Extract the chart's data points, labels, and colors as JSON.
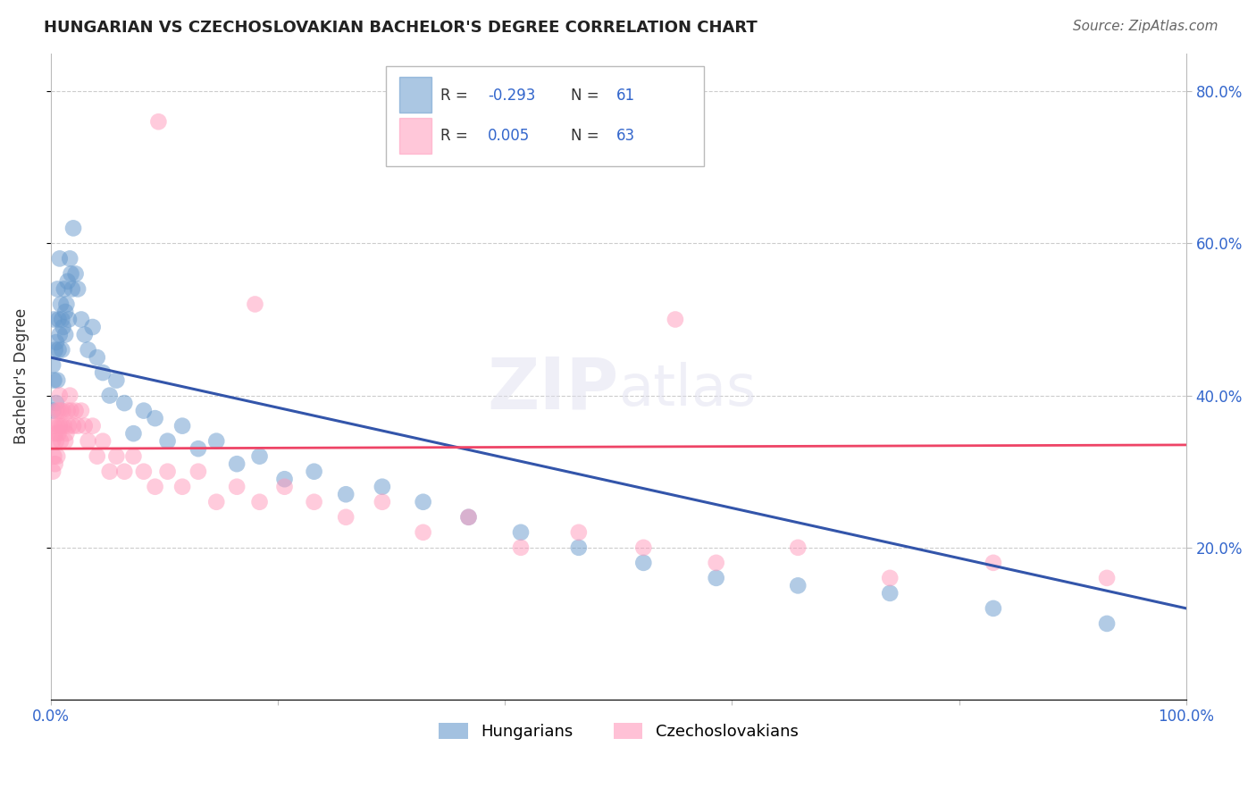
{
  "title": "HUNGARIAN VS CZECHOSLOVAKIAN BACHELOR'S DEGREE CORRELATION CHART",
  "source": "Source: ZipAtlas.com",
  "ylabel": "Bachelor's Degree",
  "xlim": [
    0.0,
    1.0
  ],
  "ylim": [
    0.0,
    0.85
  ],
  "grid_color": "#cccccc",
  "background_color": "#ffffff",
  "watermark_zip": "ZIP",
  "watermark_atlas": "atlas",
  "legend_r_hungarian": "-0.293",
  "legend_n_hungarian": "61",
  "legend_r_czech": "0.005",
  "legend_n_czech": "63",
  "hungarian_color": "#6699cc",
  "czech_color": "#ff99bb",
  "trendline_hungarian_color": "#3355aa",
  "trendline_czech_color": "#ee4466",
  "hungarian_x": [
    0.002,
    0.002,
    0.003,
    0.003,
    0.004,
    0.005,
    0.005,
    0.006,
    0.006,
    0.007,
    0.007,
    0.008,
    0.008,
    0.009,
    0.01,
    0.01,
    0.011,
    0.012,
    0.013,
    0.013,
    0.014,
    0.015,
    0.016,
    0.017,
    0.018,
    0.019,
    0.02,
    0.022,
    0.024,
    0.027,
    0.03,
    0.033,
    0.037,
    0.041,
    0.046,
    0.052,
    0.058,
    0.065,
    0.073,
    0.082,
    0.092,
    0.103,
    0.116,
    0.13,
    0.146,
    0.164,
    0.184,
    0.206,
    0.232,
    0.26,
    0.292,
    0.328,
    0.368,
    0.414,
    0.465,
    0.522,
    0.586,
    0.658,
    0.739,
    0.83,
    0.93
  ],
  "hungarian_y": [
    0.44,
    0.38,
    0.5,
    0.42,
    0.46,
    0.39,
    0.47,
    0.54,
    0.42,
    0.5,
    0.46,
    0.58,
    0.48,
    0.52,
    0.5,
    0.46,
    0.49,
    0.54,
    0.51,
    0.48,
    0.52,
    0.55,
    0.5,
    0.58,
    0.56,
    0.54,
    0.62,
    0.56,
    0.54,
    0.5,
    0.48,
    0.46,
    0.49,
    0.45,
    0.43,
    0.4,
    0.42,
    0.39,
    0.35,
    0.38,
    0.37,
    0.34,
    0.36,
    0.33,
    0.34,
    0.31,
    0.32,
    0.29,
    0.3,
    0.27,
    0.28,
    0.26,
    0.24,
    0.22,
    0.2,
    0.18,
    0.16,
    0.15,
    0.14,
    0.12,
    0.1
  ],
  "czech_x": [
    0.002,
    0.002,
    0.003,
    0.003,
    0.004,
    0.004,
    0.005,
    0.005,
    0.006,
    0.006,
    0.007,
    0.007,
    0.008,
    0.008,
    0.009,
    0.009,
    0.01,
    0.011,
    0.012,
    0.013,
    0.014,
    0.015,
    0.016,
    0.017,
    0.018,
    0.02,
    0.022,
    0.024,
    0.027,
    0.03,
    0.033,
    0.037,
    0.041,
    0.046,
    0.052,
    0.058,
    0.065,
    0.073,
    0.082,
    0.092,
    0.103,
    0.116,
    0.13,
    0.146,
    0.164,
    0.184,
    0.206,
    0.232,
    0.26,
    0.292,
    0.328,
    0.368,
    0.414,
    0.465,
    0.522,
    0.586,
    0.658,
    0.739,
    0.83,
    0.93,
    0.095,
    0.18,
    0.55
  ],
  "czech_y": [
    0.34,
    0.3,
    0.36,
    0.32,
    0.35,
    0.31,
    0.38,
    0.34,
    0.36,
    0.32,
    0.35,
    0.38,
    0.4,
    0.36,
    0.38,
    0.34,
    0.36,
    0.38,
    0.36,
    0.34,
    0.35,
    0.38,
    0.36,
    0.4,
    0.38,
    0.36,
    0.38,
    0.36,
    0.38,
    0.36,
    0.34,
    0.36,
    0.32,
    0.34,
    0.3,
    0.32,
    0.3,
    0.32,
    0.3,
    0.28,
    0.3,
    0.28,
    0.3,
    0.26,
    0.28,
    0.26,
    0.28,
    0.26,
    0.24,
    0.26,
    0.22,
    0.24,
    0.2,
    0.22,
    0.2,
    0.18,
    0.2,
    0.16,
    0.18,
    0.16,
    0.76,
    0.52,
    0.5
  ],
  "trendline_czech_y_start": 0.33,
  "trendline_czech_y_end": 0.335,
  "trendline_hungarian_y_start": 0.45,
  "trendline_hungarian_y_end": 0.12
}
